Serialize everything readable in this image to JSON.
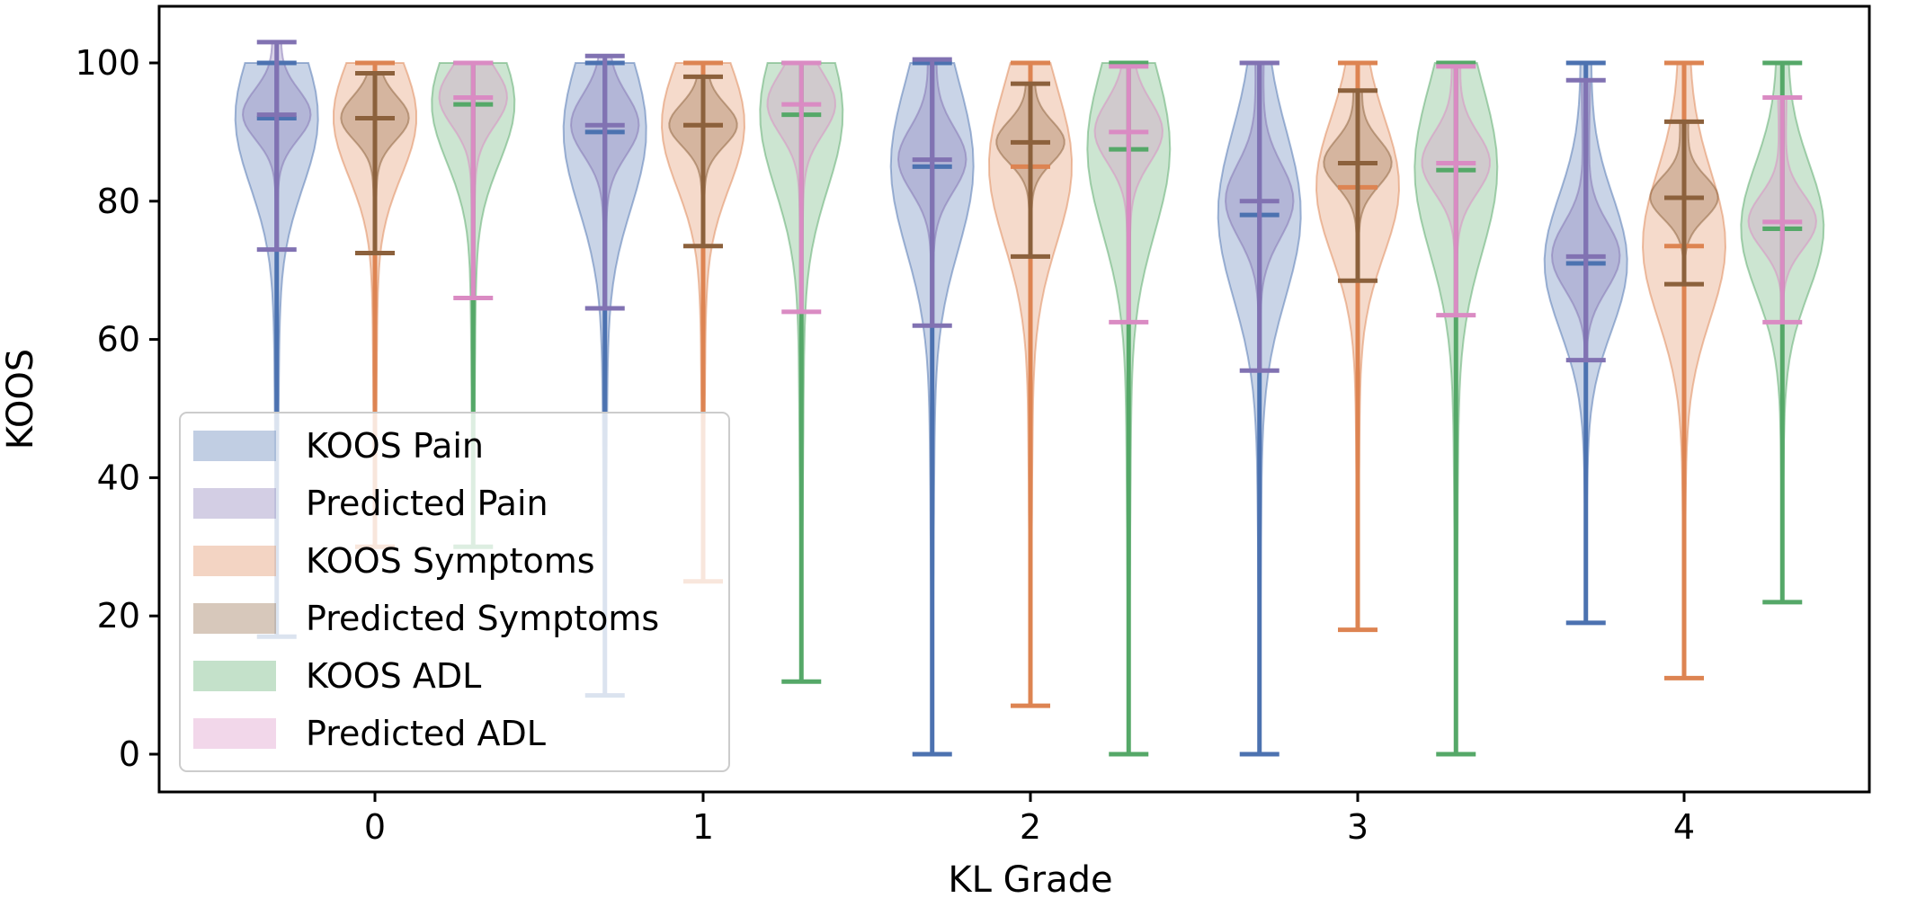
{
  "chart_data": {
    "type": "violin",
    "xlabel": "KL Grade",
    "ylabel": "KOOS",
    "categories": [
      "0",
      "1",
      "2",
      "3",
      "4"
    ],
    "yticks": [
      0,
      20,
      40,
      60,
      80,
      100
    ],
    "ylim": [
      -5,
      108
    ],
    "legend_position": "lower-left",
    "series": [
      {
        "name": "KOOS Pain",
        "color": "#4c72b0",
        "stats": [
          {
            "min": 17,
            "median": 92,
            "max": 100
          },
          {
            "min": 8.5,
            "median": 90,
            "max": 100
          },
          {
            "min": 0,
            "median": 85,
            "max": 100
          },
          {
            "min": 0,
            "median": 78,
            "max": 100
          },
          {
            "min": 19,
            "median": 71,
            "max": 100
          }
        ]
      },
      {
        "name": "Predicted Pain",
        "color": "#8172b2",
        "stats": [
          {
            "min": 73,
            "median": 92.5,
            "max": 103
          },
          {
            "min": 64.5,
            "median": 91,
            "max": 101
          },
          {
            "min": 62,
            "median": 86,
            "max": 100.5
          },
          {
            "min": 55.5,
            "median": 80,
            "max": 100
          },
          {
            "min": 57,
            "median": 72,
            "max": 97.5
          }
        ]
      },
      {
        "name": "KOOS Symptoms",
        "color": "#dd8452",
        "stats": [
          {
            "min": 30,
            "median": 92,
            "max": 100
          },
          {
            "min": 25,
            "median": 91,
            "max": 100
          },
          {
            "min": 7,
            "median": 85,
            "max": 100
          },
          {
            "min": 18,
            "median": 82,
            "max": 100
          },
          {
            "min": 11,
            "median": 73.5,
            "max": 100
          }
        ]
      },
      {
        "name": "Predicted Symptoms",
        "color": "#8c613c",
        "stats": [
          {
            "min": 72.5,
            "median": 92,
            "max": 98.5
          },
          {
            "min": 73.5,
            "median": 91,
            "max": 98
          },
          {
            "min": 72,
            "median": 88.5,
            "max": 97
          },
          {
            "min": 68.5,
            "median": 85.5,
            "max": 96
          },
          {
            "min": 68,
            "median": 80.5,
            "max": 91.5
          }
        ]
      },
      {
        "name": "KOOS ADL",
        "color": "#55a868",
        "stats": [
          {
            "min": 30,
            "median": 94,
            "max": 100
          },
          {
            "min": 10.5,
            "median": 92.5,
            "max": 100
          },
          {
            "min": 0,
            "median": 87.5,
            "max": 100
          },
          {
            "min": 0,
            "median": 84.5,
            "max": 100
          },
          {
            "min": 22,
            "median": 76,
            "max": 100
          }
        ]
      },
      {
        "name": "Predicted ADL",
        "color": "#da8bc3",
        "stats": [
          {
            "min": 66,
            "median": 95,
            "max": 100
          },
          {
            "min": 64,
            "median": 94,
            "max": 100
          },
          {
            "min": 62.5,
            "median": 90,
            "max": 99.5
          },
          {
            "min": 63.5,
            "median": 85.5,
            "max": 99.5
          },
          {
            "min": 62.5,
            "median": 77,
            "max": 95
          }
        ]
      }
    ]
  }
}
